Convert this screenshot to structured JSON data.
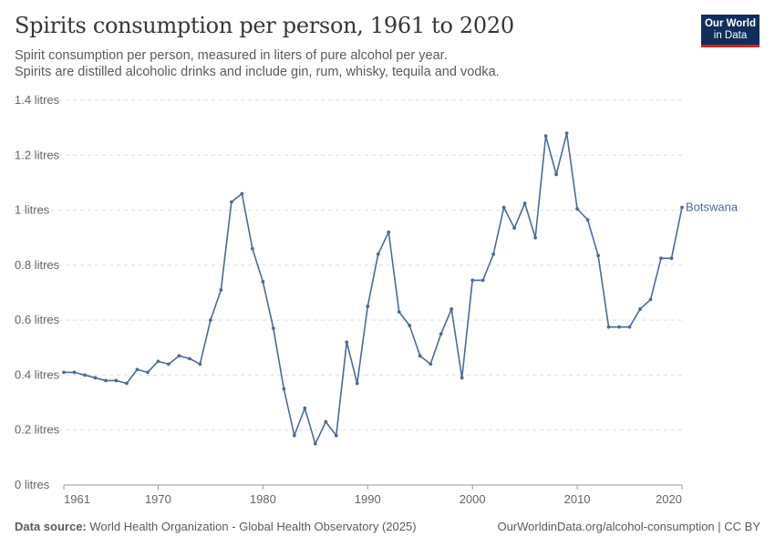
{
  "title": "Spirits consumption per person, 1961 to 2020",
  "subtitle_line1": "Spirit consumption per person, measured in liters of pure alcohol per year.",
  "subtitle_line2": "Spirits are distilled alcoholic drinks and include gin, rum, whisky, tequila and vodka.",
  "logo": {
    "line1": "Our World",
    "line2": "in Data"
  },
  "footer": {
    "source_label": "Data source:",
    "source_text": "World Health Organization - Global Health Observatory (2025)",
    "url": "OurWorldinData.org/alcohol-consumption | CC BY"
  },
  "colors": {
    "series": "#4c6a9c",
    "grid": "#dddddd",
    "axis": "#666666",
    "logo_bg": "#0f2e5c",
    "logo_accent": "#ce261e"
  },
  "chart_data": {
    "type": "line",
    "title": "Spirits consumption per person, 1961 to 2020",
    "xlabel": "",
    "ylabel": "",
    "xlim": [
      1961,
      2020
    ],
    "ylim": [
      0,
      1.4
    ],
    "y_ticks": [
      0,
      0.2,
      0.4,
      0.6,
      0.8,
      1,
      1.2,
      1.4
    ],
    "y_tick_labels": [
      "0 litres",
      "0.2 litres",
      "0.4 litres",
      "0.6 litres",
      "0.8 litres",
      "1 litres",
      "1.2 litres",
      "1.4 litres"
    ],
    "x_ticks": [
      1961,
      1970,
      1980,
      1990,
      2000,
      2010,
      2020
    ],
    "x_tick_labels": [
      "1961",
      "1970",
      "1980",
      "1990",
      "2000",
      "2010",
      "2020"
    ],
    "grid": true,
    "series": [
      {
        "name": "Botswana",
        "x": [
          1961,
          1962,
          1963,
          1964,
          1965,
          1966,
          1967,
          1968,
          1969,
          1970,
          1971,
          1972,
          1973,
          1974,
          1975,
          1976,
          1977,
          1978,
          1979,
          1980,
          1981,
          1982,
          1983,
          1984,
          1985,
          1986,
          1987,
          1988,
          1989,
          1990,
          1991,
          1992,
          1993,
          1994,
          1995,
          1996,
          1997,
          1998,
          1999,
          2000,
          2001,
          2002,
          2003,
          2004,
          2005,
          2006,
          2007,
          2008,
          2009,
          2010,
          2011,
          2012,
          2013,
          2014,
          2015,
          2016,
          2017,
          2018,
          2019,
          2020
        ],
        "values": [
          0.41,
          0.41,
          0.4,
          0.39,
          0.38,
          0.38,
          0.37,
          0.42,
          0.41,
          0.45,
          0.44,
          0.47,
          0.46,
          0.44,
          0.6,
          0.71,
          1.03,
          1.06,
          0.86,
          0.74,
          0.57,
          0.35,
          0.18,
          0.28,
          0.15,
          0.23,
          0.18,
          0.52,
          0.37,
          0.65,
          0.84,
          0.92,
          0.63,
          0.58,
          0.47,
          0.44,
          0.55,
          0.64,
          0.39,
          0.745,
          0.745,
          0.84,
          1.01,
          0.935,
          1.025,
          0.9,
          1.27,
          1.13,
          1.28,
          1.005,
          0.965,
          0.835,
          0.575,
          0.575,
          0.575,
          0.64,
          0.675,
          0.825,
          0.825,
          1.01
        ]
      }
    ]
  }
}
